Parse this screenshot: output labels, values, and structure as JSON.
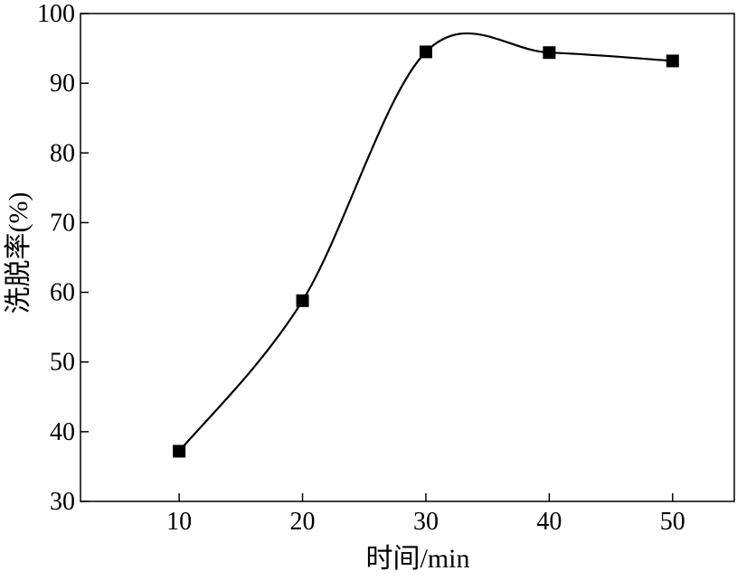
{
  "chart_data": {
    "type": "line",
    "title": "",
    "xlabel": "时间/min",
    "ylabel": "洗脱率(%)",
    "x": [
      10,
      20,
      30,
      40,
      50
    ],
    "series": [
      {
        "values": [
          37.2,
          58.8,
          94.5,
          94.4,
          93.2
        ]
      }
    ],
    "xlim": [
      2,
      55
    ],
    "ylim": [
      30,
      100
    ],
    "xticks": [
      10,
      20,
      30,
      40,
      50
    ],
    "yticks": [
      30,
      40,
      50,
      60,
      70,
      80,
      90,
      100
    ],
    "xtick_labels": [
      "10",
      "20",
      "30",
      "40",
      "50"
    ],
    "ytick_labels": [
      "30",
      "40",
      "50",
      "60",
      "70",
      "80",
      "90",
      "100"
    ],
    "marker": "square",
    "line_style": "smooth",
    "grid": false,
    "colors": {
      "line": "#000000",
      "marker": "#000000",
      "axis": "#000000"
    }
  }
}
